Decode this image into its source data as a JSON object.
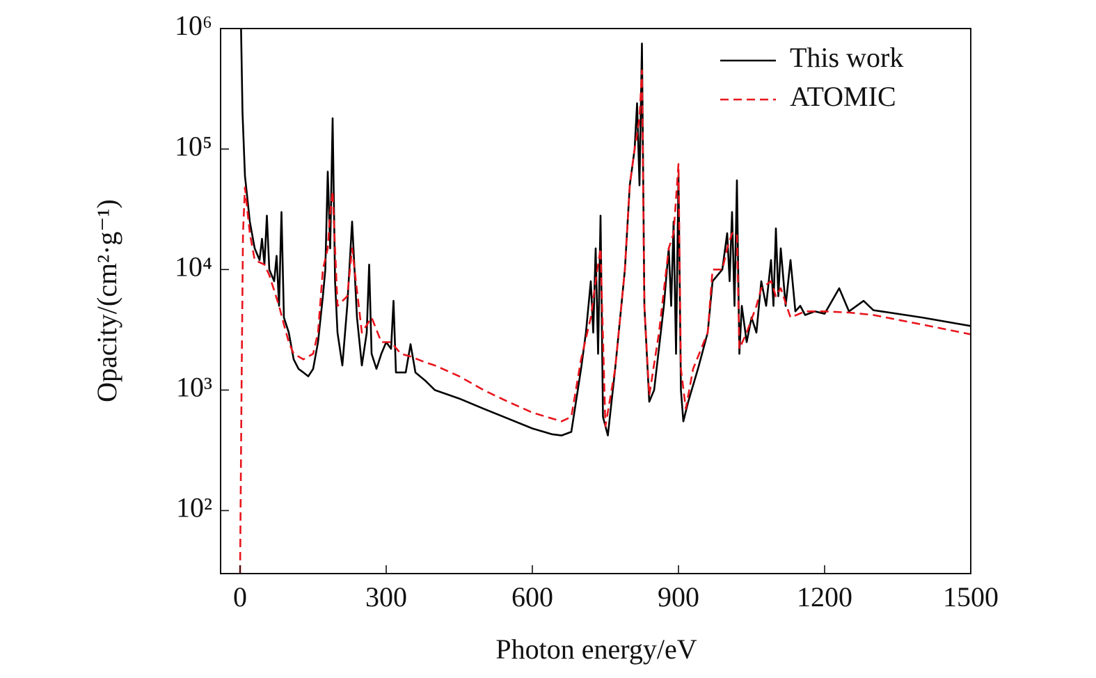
{
  "chart_data": {
    "type": "line",
    "x_label": "Photon energy/eV",
    "y_label": "Opacity/(cm²·g⁻¹)",
    "log_y": true,
    "legend": "top-right",
    "xlim": [
      -40,
      1500
    ],
    "xticks": [
      0,
      300,
      600,
      900,
      1200,
      1500
    ],
    "ylim": [
      30,
      1000000
    ],
    "yticks": [
      {
        "value": 100,
        "label": "10²"
      },
      {
        "value": 1000,
        "label": "10³"
      },
      {
        "value": 10000,
        "label": "10⁴"
      },
      {
        "value": 100000,
        "label": "10⁵"
      },
      {
        "value": 1000000,
        "label": "10⁶"
      }
    ],
    "series": [
      {
        "name": "This work",
        "color": "#000000",
        "style": "solid",
        "x": [
          2,
          5,
          10,
          20,
          30,
          40,
          45,
          50,
          55,
          60,
          70,
          75,
          80,
          85,
          90,
          100,
          110,
          120,
          130,
          140,
          150,
          160,
          170,
          175,
          180,
          185,
          190,
          195,
          200,
          210,
          220,
          230,
          240,
          250,
          260,
          265,
          270,
          280,
          290,
          300,
          310,
          315,
          320,
          340,
          350,
          360,
          380,
          400,
          450,
          500,
          550,
          600,
          640,
          660,
          680,
          700,
          710,
          720,
          725,
          730,
          735,
          740,
          745,
          755,
          770,
          790,
          800,
          810,
          815,
          820,
          825,
          830,
          840,
          850,
          870,
          880,
          885,
          890,
          895,
          900,
          905,
          910,
          920,
          940,
          960,
          970,
          990,
          1000,
          1005,
          1010,
          1015,
          1020,
          1025,
          1030,
          1040,
          1050,
          1060,
          1070,
          1080,
          1090,
          1095,
          1100,
          1105,
          1110,
          1120,
          1130,
          1140,
          1150,
          1160,
          1180,
          1200,
          1230,
          1250,
          1280,
          1300,
          1400,
          1500
        ],
        "values": [
          1000000,
          200000,
          60000,
          25000,
          15000,
          12000,
          18000,
          11000,
          28000,
          10000,
          8000,
          13000,
          5000,
          30000,
          4000,
          3000,
          1800,
          1500,
          1400,
          1300,
          1500,
          2500,
          6000,
          10000,
          65000,
          15000,
          180000,
          8000,
          3000,
          1600,
          5000,
          25000,
          4000,
          1600,
          3000,
          11000,
          2000,
          1500,
          2000,
          2500,
          2200,
          5500,
          1400,
          1400,
          2400,
          1400,
          1200,
          1000,
          850,
          700,
          580,
          480,
          430,
          420,
          450,
          1500,
          3000,
          8000,
          3000,
          15000,
          2000,
          28000,
          600,
          420,
          1500,
          10000,
          50000,
          100000,
          240000,
          50000,
          750000,
          5000,
          800,
          1000,
          5000,
          15000,
          5000,
          25000,
          2000,
          60000,
          1000,
          550,
          800,
          1500,
          3000,
          8000,
          10000,
          20000,
          8000,
          30000,
          5000,
          55000,
          2000,
          5000,
          2500,
          4000,
          3000,
          8000,
          5000,
          12000,
          5000,
          22000,
          6000,
          15000,
          5000,
          12000,
          4500,
          5000,
          4200,
          4500,
          4300,
          7000,
          4500,
          5500,
          4600,
          4000,
          3400
        ]
      },
      {
        "name": "ATOMIC",
        "color": "#e8141c",
        "style": "dashed",
        "x": [
          0,
          3,
          6,
          10,
          20,
          30,
          50,
          60,
          80,
          90,
          100,
          110,
          130,
          150,
          160,
          170,
          180,
          185,
          190,
          200,
          220,
          230,
          250,
          270,
          290,
          310,
          330,
          350,
          380,
          400,
          450,
          500,
          550,
          600,
          660,
          680,
          700,
          720,
          730,
          740,
          750,
          770,
          790,
          800,
          810,
          820,
          825,
          830,
          840,
          860,
          880,
          890,
          900,
          905,
          915,
          930,
          960,
          970,
          990,
          1000,
          1010,
          1020,
          1025,
          1040,
          1060,
          1070,
          1090,
          1100,
          1110,
          1130,
          1160,
          1200,
          1250,
          1300,
          1400,
          1500
        ],
        "values": [
          30,
          1000,
          20000,
          48000,
          20000,
          12000,
          11000,
          9000,
          5000,
          3500,
          2500,
          2000,
          1800,
          2000,
          3000,
          10000,
          15000,
          30000,
          45000,
          5000,
          6000,
          15000,
          3000,
          4000,
          2500,
          2500,
          2000,
          1900,
          1700,
          1600,
          1300,
          1000,
          800,
          650,
          550,
          600,
          1800,
          4000,
          8000,
          15000,
          500,
          1500,
          10000,
          50000,
          100000,
          180000,
          450000,
          5000,
          900,
          3000,
          15000,
          20000,
          75000,
          1500,
          700,
          1500,
          3000,
          10000,
          10000,
          15000,
          20000,
          20000,
          2200,
          3000,
          5000,
          7000,
          8000,
          6000,
          7000,
          4000,
          4500,
          4500,
          4400,
          4200,
          3500,
          2900
        ]
      }
    ]
  }
}
